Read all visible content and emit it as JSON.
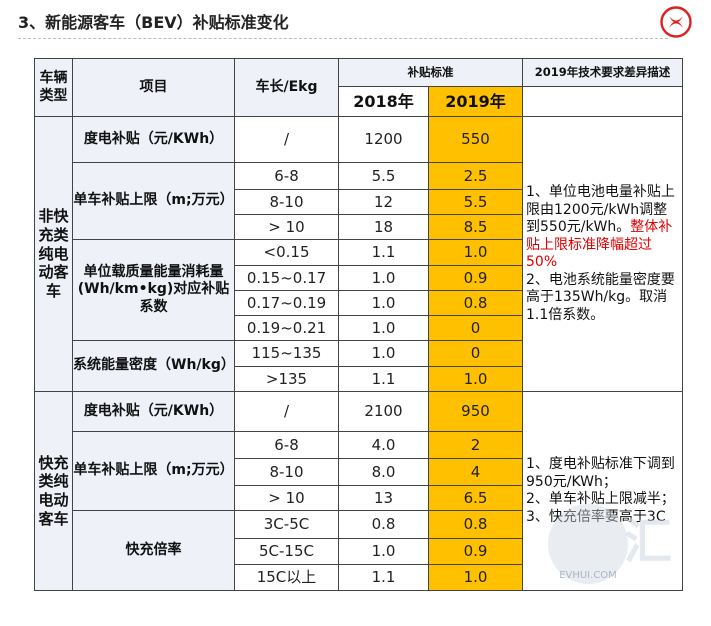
{
  "slide": {
    "title": "3、新能源客车（BEV）补贴标准变化",
    "logo_name": "dongfeng-logo",
    "accent_color": "#ffc000",
    "logo_color": "#e02020"
  },
  "table": {
    "headers": {
      "category": "车辆类型",
      "item": "项目",
      "length": "车长/Ekg",
      "subsidy_standard": "补贴标准",
      "year_2018": "2018年",
      "year_2019": "2019年",
      "diff": "2019年技术要求差异描述"
    },
    "groups": [
      {
        "category": "非快充类纯电动客车",
        "items": [
          {
            "label": "度电补贴（元/KWh）",
            "rows": [
              {
                "length": "/",
                "v2018": "1200",
                "v2019": "550"
              }
            ]
          },
          {
            "label": "单车补贴上限（m;万元）",
            "rows": [
              {
                "length": "6-8",
                "v2018": "5.5",
                "v2019": "2.5"
              },
              {
                "length": "8-10",
                "v2018": "12",
                "v2019": "5.5"
              },
              {
                "length": "> 10",
                "v2018": "18",
                "v2019": "8.5"
              }
            ]
          },
          {
            "label": "单位载质量能量消耗量(Wh/km•kg)对应补贴系数",
            "rows": [
              {
                "length": "<0.15",
                "v2018": "1.1",
                "v2019": "1.0"
              },
              {
                "length": "0.15~0.17",
                "v2018": "1.0",
                "v2019": "0.9"
              },
              {
                "length": "0.17~0.19",
                "v2018": "1.0",
                "v2019": "0.8"
              },
              {
                "length": "0.19~0.21",
                "v2018": "1.0",
                "v2019": "0"
              }
            ]
          },
          {
            "label": "系统能量密度（Wh/kg）",
            "rows": [
              {
                "length": "115~135",
                "v2018": "1.0",
                "v2019": "0"
              },
              {
                "length": ">135",
                "v2018": "1.1",
                "v2019": "1.0"
              }
            ]
          }
        ],
        "desc": {
          "p1": "1、单位电池电量补贴上限由1200元/kWh调整到550元/kWh。",
          "p1_red": "整体补贴上限标准降幅超过50%",
          "p2": "2、电池系统能量密度要高于135Wh/kg。取消1.1倍系数。"
        }
      },
      {
        "category": "快充类纯电动客车",
        "items": [
          {
            "label": "度电补贴（元/KWh）",
            "rows": [
              {
                "length": "/",
                "v2018": "2100",
                "v2019": "950"
              }
            ]
          },
          {
            "label": "单车补贴上限（m;万元）",
            "rows": [
              {
                "length": "6-8",
                "v2018": "4.0",
                "v2019": "2"
              },
              {
                "length": "8-10",
                "v2018": "8.0",
                "v2019": "4"
              },
              {
                "length": "> 10",
                "v2018": "13",
                "v2019": "6.5"
              }
            ]
          },
          {
            "label": "快充倍率",
            "rows": [
              {
                "length": "3C-5C",
                "v2018": "0.8",
                "v2019": "0.8"
              },
              {
                "length": "5C-15C",
                "v2018": "1.0",
                "v2019": "0.9"
              },
              {
                "length": "15C以上",
                "v2018": "1.1",
                "v2019": "1.0"
              }
            ]
          }
        ],
        "desc": {
          "p1": "1、度电补贴标准下调到950元/KWh；",
          "p2": "2、单车补贴上限减半；",
          "p3": "3、快充倍率要高于3C"
        }
      }
    ]
  },
  "watermark": {
    "site": "EVHUI.COM",
    "brand_char": "汇"
  }
}
